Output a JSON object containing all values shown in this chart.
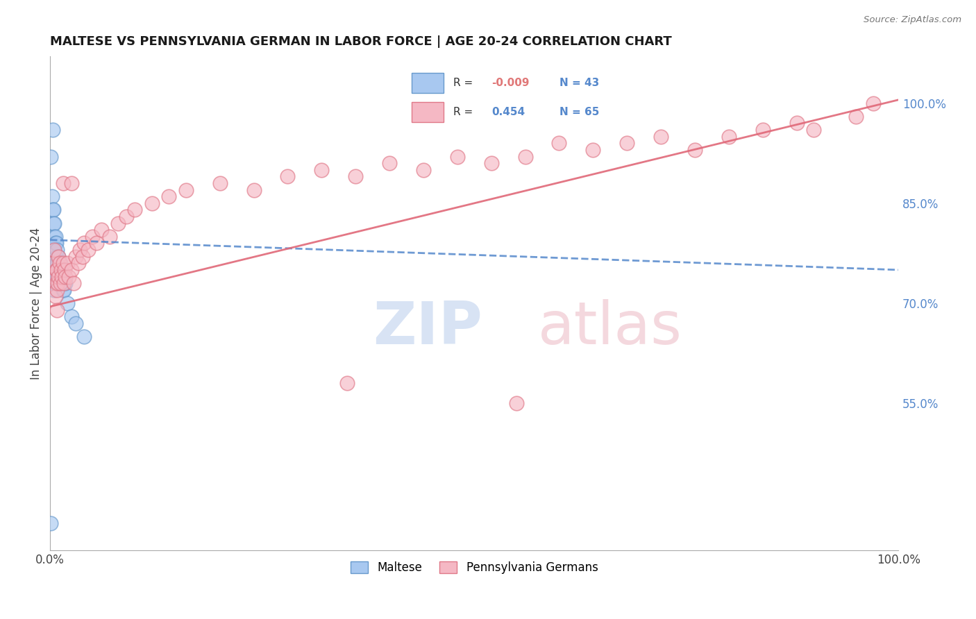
{
  "title": "MALTESE VS PENNSYLVANIA GERMAN IN LABOR FORCE | AGE 20-24 CORRELATION CHART",
  "source": "Source: ZipAtlas.com",
  "ylabel": "In Labor Force | Age 20-24",
  "maltese_color": "#A8C8F0",
  "maltese_edge": "#6699CC",
  "pa_german_color": "#F5B8C4",
  "pa_german_edge": "#E07888",
  "maltese_R": -0.009,
  "maltese_N": 43,
  "pa_german_R": 0.454,
  "pa_german_N": 65,
  "blue_line_color": "#5588CC",
  "pink_line_color": "#E06878",
  "grid_color": "#DDDDDD",
  "blue_line_y0": 0.795,
  "blue_line_y1": 0.75,
  "pink_line_y0": 0.695,
  "pink_line_y1": 1.005,
  "xlim": [
    0.0,
    1.0
  ],
  "ylim": [
    0.33,
    1.07
  ],
  "right_yticks": [
    1.0,
    0.85,
    0.7,
    0.55
  ],
  "right_yticklabels": [
    "100.0%",
    "85.0%",
    "70.0%",
    "55.0%"
  ],
  "maltese_x": [
    0.001,
    0.002,
    0.002,
    0.003,
    0.003,
    0.003,
    0.004,
    0.004,
    0.004,
    0.004,
    0.005,
    0.005,
    0.005,
    0.005,
    0.005,
    0.006,
    0.006,
    0.006,
    0.006,
    0.007,
    0.007,
    0.007,
    0.007,
    0.008,
    0.008,
    0.008,
    0.009,
    0.009,
    0.009,
    0.01,
    0.01,
    0.011,
    0.012,
    0.013,
    0.014,
    0.015,
    0.016,
    0.018,
    0.02,
    0.025,
    0.03,
    0.04,
    0.001
  ],
  "maltese_y": [
    0.92,
    0.86,
    0.76,
    0.96,
    0.84,
    0.73,
    0.84,
    0.82,
    0.78,
    0.74,
    0.82,
    0.8,
    0.78,
    0.76,
    0.72,
    0.8,
    0.79,
    0.76,
    0.74,
    0.79,
    0.77,
    0.76,
    0.73,
    0.78,
    0.76,
    0.74,
    0.76,
    0.74,
    0.73,
    0.77,
    0.74,
    0.75,
    0.76,
    0.74,
    0.73,
    0.72,
    0.72,
    0.73,
    0.7,
    0.68,
    0.67,
    0.65,
    0.37
  ],
  "pa_german_x": [
    0.003,
    0.004,
    0.005,
    0.006,
    0.007,
    0.007,
    0.008,
    0.008,
    0.009,
    0.01,
    0.01,
    0.011,
    0.012,
    0.013,
    0.014,
    0.015,
    0.016,
    0.017,
    0.018,
    0.02,
    0.022,
    0.025,
    0.028,
    0.03,
    0.033,
    0.035,
    0.038,
    0.04,
    0.045,
    0.05,
    0.055,
    0.06,
    0.07,
    0.08,
    0.09,
    0.1,
    0.12,
    0.14,
    0.16,
    0.2,
    0.24,
    0.28,
    0.32,
    0.36,
    0.4,
    0.44,
    0.48,
    0.52,
    0.56,
    0.6,
    0.64,
    0.68,
    0.72,
    0.76,
    0.8,
    0.84,
    0.88,
    0.9,
    0.95,
    0.97,
    0.015,
    0.025,
    0.35,
    0.55,
    0.008
  ],
  "pa_german_y": [
    0.74,
    0.76,
    0.78,
    0.71,
    0.75,
    0.73,
    0.75,
    0.72,
    0.73,
    0.77,
    0.74,
    0.76,
    0.73,
    0.75,
    0.74,
    0.76,
    0.73,
    0.75,
    0.74,
    0.76,
    0.74,
    0.75,
    0.73,
    0.77,
    0.76,
    0.78,
    0.77,
    0.79,
    0.78,
    0.8,
    0.79,
    0.81,
    0.8,
    0.82,
    0.83,
    0.84,
    0.85,
    0.86,
    0.87,
    0.88,
    0.87,
    0.89,
    0.9,
    0.89,
    0.91,
    0.9,
    0.92,
    0.91,
    0.92,
    0.94,
    0.93,
    0.94,
    0.95,
    0.93,
    0.95,
    0.96,
    0.97,
    0.96,
    0.98,
    1.0,
    0.88,
    0.88,
    0.58,
    0.55,
    0.69
  ]
}
